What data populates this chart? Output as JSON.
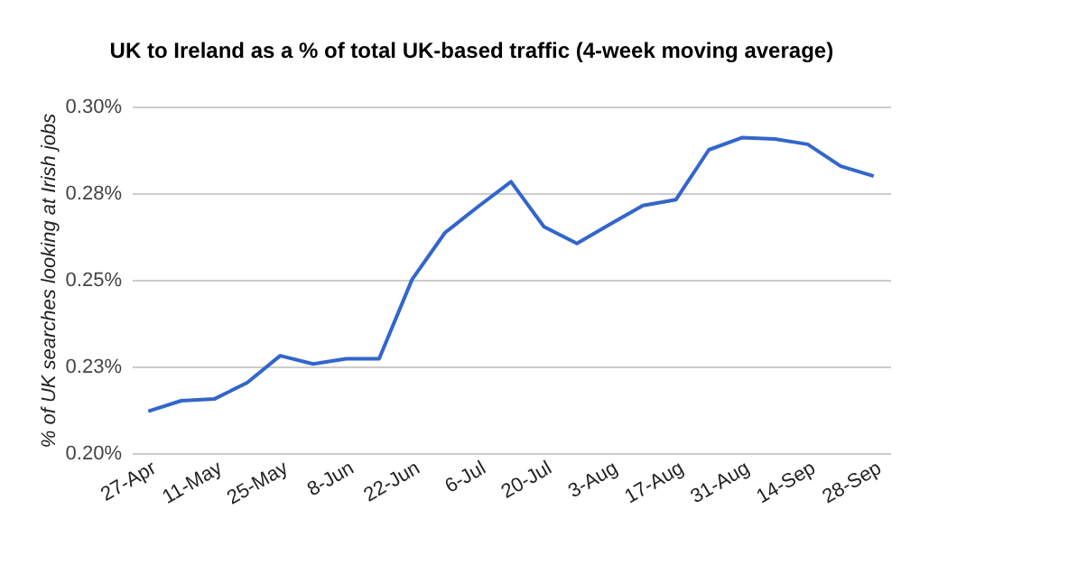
{
  "chart_data": {
    "type": "line",
    "title": "UK to Ireland as a % of total UK-based traffic (4-week moving average)",
    "ylabel": "% of UK searches looking at Irish jobs",
    "categories": [
      "27-Apr",
      null,
      "11-May",
      null,
      "25-May",
      null,
      "8-Jun",
      null,
      "22-Jun",
      null,
      "6-Jul",
      null,
      "20-Jul",
      null,
      "3-Aug",
      null,
      "17-Aug",
      null,
      "31-Aug",
      null,
      "14-Sep",
      null,
      "28-Sep"
    ],
    "series": [
      {
        "color": "#3366cc",
        "values": [
          0.2121,
          0.2151,
          0.2156,
          0.2203,
          0.2281,
          0.2257,
          0.2272,
          0.2272,
          0.2501,
          0.2636,
          0.2711,
          0.2783,
          0.2653,
          0.2605,
          0.266,
          0.2714,
          0.2731,
          0.2875,
          0.291,
          0.2906,
          0.2891,
          0.2828,
          0.2799
        ]
      }
    ],
    "ylim": [
      0.2,
      0.3
    ],
    "yticks": [
      {
        "value": 0.2,
        "label": "0.20%"
      },
      {
        "value": 0.225,
        "label": "0.23%"
      },
      {
        "value": 0.25,
        "label": "0.25%"
      },
      {
        "value": 0.275,
        "label": "0.28%"
      },
      {
        "value": 0.3,
        "label": "0.30%"
      }
    ],
    "grid": "y",
    "marker": "none",
    "line_style": "solid"
  }
}
